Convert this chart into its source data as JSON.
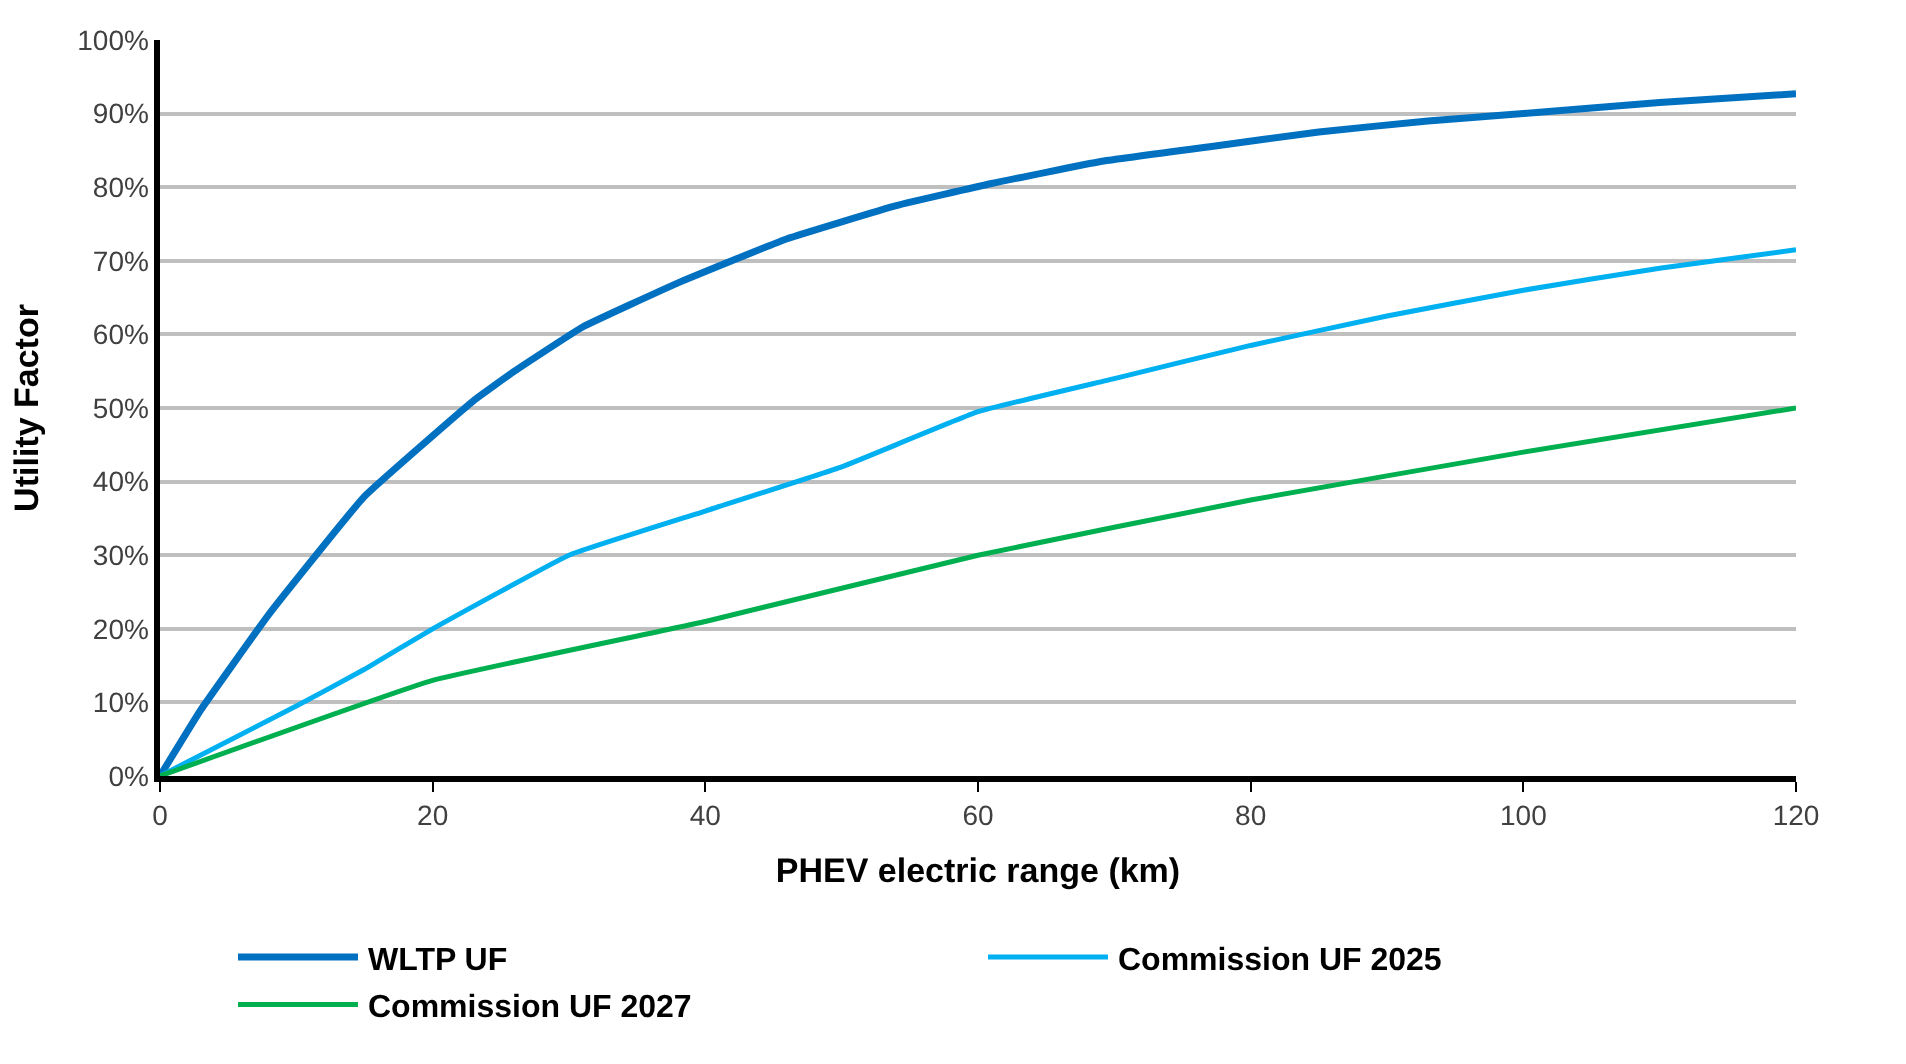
{
  "chart_data": {
    "type": "line",
    "xlabel": "PHEV electric range (km)",
    "ylabel": "Utility Factor",
    "xlim": [
      0,
      120
    ],
    "xticks": [
      0,
      20,
      40,
      60,
      80,
      100,
      120
    ],
    "ylim": [
      0,
      100
    ],
    "yticks": [
      {
        "value": 0,
        "label": "0%"
      },
      {
        "value": 10,
        "label": "10%"
      },
      {
        "value": 20,
        "label": "20%"
      },
      {
        "value": 30,
        "label": "30%"
      },
      {
        "value": 40,
        "label": "40%"
      },
      {
        "value": 50,
        "label": "50%"
      },
      {
        "value": 60,
        "label": "60%"
      },
      {
        "value": 70,
        "label": "70%"
      },
      {
        "value": 80,
        "label": "80%"
      },
      {
        "value": 90,
        "label": "90%"
      },
      {
        "value": 100,
        "label": "100%"
      }
    ],
    "grid": "y",
    "legend": "bottom",
    "marker": "none",
    "line_style": "solid",
    "series": [
      {
        "name": "WLTP UF",
        "color": "#0070c0",
        "x": [
          0,
          3,
          8,
          15,
          23,
          26,
          31,
          38,
          46,
          54,
          61,
          69,
          77,
          85,
          93,
          100,
          110,
          120
        ],
        "values": [
          0,
          9,
          22,
          38,
          51,
          55,
          61,
          67,
          73,
          77.5,
          80.5,
          83.5,
          85.5,
          87.5,
          89,
          90,
          91.5,
          92.7
        ]
      },
      {
        "name": "Commission UF 2025",
        "color": "#00b0f0",
        "x": [
          0,
          10,
          15,
          20,
          30,
          40,
          50,
          60,
          70,
          80,
          90,
          100,
          110,
          120
        ],
        "values": [
          0,
          9.5,
          14.5,
          20,
          30,
          36,
          42,
          49.5,
          54,
          58.5,
          62.5,
          66,
          69,
          71.5
        ]
      },
      {
        "name": "Commission UF 2027",
        "color": "#00b050",
        "x": [
          0,
          20,
          40,
          60,
          80,
          100,
          120
        ],
        "values": [
          0,
          13,
          21,
          30,
          37.5,
          44,
          50
        ]
      }
    ]
  }
}
